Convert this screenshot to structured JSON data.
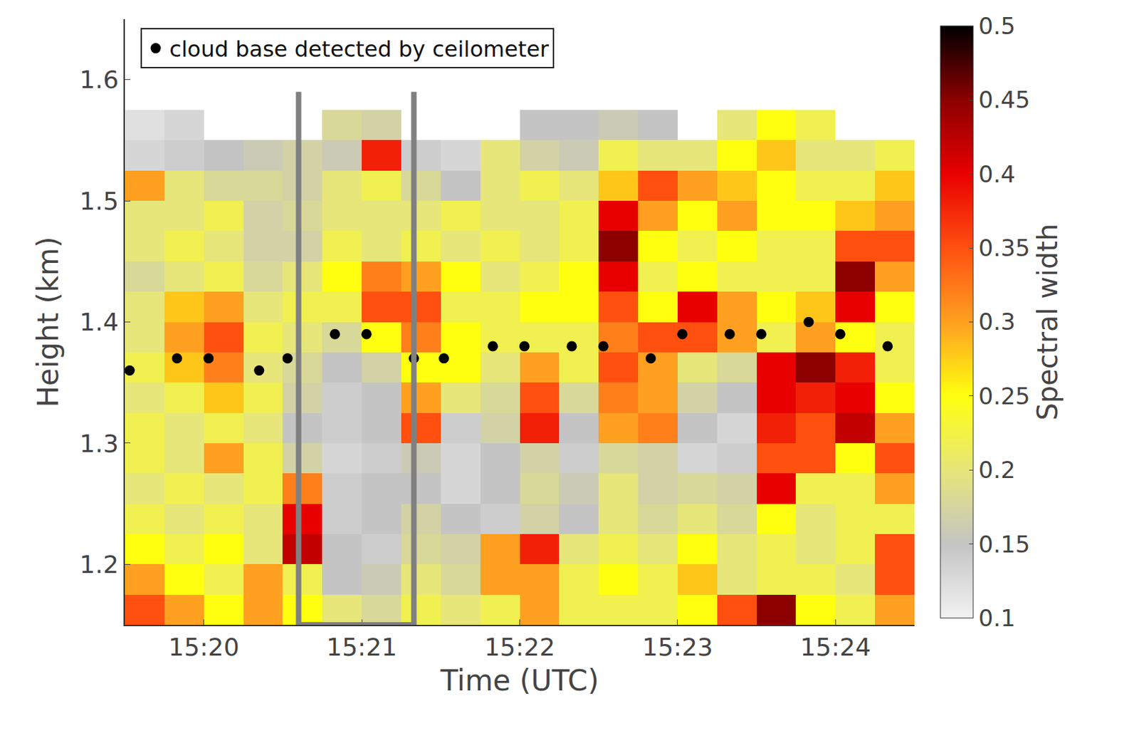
{
  "chart_data": {
    "type": "heatmap",
    "x_label": "Time (UTC)",
    "y_label": "Height (km)",
    "xlim": [
      919.5,
      924.5
    ],
    "xticks": [
      {
        "value": 920,
        "label": "15:20"
      },
      {
        "value": 921,
        "label": "15:21"
      },
      {
        "value": 922,
        "label": "15:22"
      },
      {
        "value": 923,
        "label": "15:23"
      },
      {
        "value": 924,
        "label": "15:24"
      }
    ],
    "ylim": [
      1.15,
      1.65
    ],
    "yticks": [
      1.2,
      1.3,
      1.4,
      1.5,
      1.6
    ],
    "x": [
      919.625,
      919.875,
      920.125,
      920.375,
      920.625,
      920.875,
      921.125,
      921.375,
      921.625,
      921.875,
      922.125,
      922.375,
      922.625,
      922.875,
      923.125,
      923.375,
      923.625,
      923.875,
      924.125,
      924.375
    ],
    "y": [
      1.1625,
      1.1875,
      1.2125,
      1.2375,
      1.2625,
      1.2875,
      1.3125,
      1.3375,
      1.3625,
      1.3875,
      1.4125,
      1.4375,
      1.4625,
      1.4875,
      1.5125,
      1.5375,
      1.5625
    ],
    "cells": [
      [
        0.35,
        0.3,
        0.25,
        0.3,
        0.25,
        0.2,
        0.18,
        0.22,
        0.2,
        0.22,
        0.3,
        0.22,
        0.22,
        0.22,
        0.25,
        0.35,
        0.45,
        0.25,
        0.22,
        0.3
      ],
      [
        0.3,
        0.25,
        0.22,
        0.3,
        0.22,
        0.15,
        0.16,
        0.2,
        0.18,
        0.3,
        0.3,
        0.22,
        0.25,
        0.22,
        0.28,
        0.2,
        0.22,
        0.22,
        0.2,
        0.35
      ],
      [
        0.25,
        0.22,
        0.25,
        0.2,
        0.42,
        0.15,
        0.14,
        0.18,
        0.17,
        0.3,
        0.38,
        0.2,
        0.22,
        0.2,
        0.25,
        0.2,
        0.22,
        0.2,
        0.22,
        0.35
      ],
      [
        0.22,
        0.2,
        0.22,
        0.2,
        0.4,
        0.14,
        0.15,
        0.17,
        0.15,
        0.14,
        0.17,
        0.15,
        0.2,
        0.18,
        0.2,
        0.18,
        0.25,
        0.2,
        0.22,
        0.22
      ],
      [
        0.2,
        0.22,
        0.2,
        0.22,
        0.32,
        0.14,
        0.15,
        0.15,
        0.13,
        0.15,
        0.18,
        0.16,
        0.2,
        0.17,
        0.18,
        0.17,
        0.4,
        0.22,
        0.22,
        0.3
      ],
      [
        0.22,
        0.2,
        0.3,
        0.22,
        0.17,
        0.13,
        0.14,
        0.16,
        0.13,
        0.15,
        0.17,
        0.14,
        0.18,
        0.17,
        0.13,
        0.14,
        0.35,
        0.35,
        0.25,
        0.35
      ],
      [
        0.22,
        0.2,
        0.22,
        0.2,
        0.15,
        0.14,
        0.15,
        0.35,
        0.14,
        0.17,
        0.38,
        0.15,
        0.3,
        0.32,
        0.15,
        0.13,
        0.38,
        0.35,
        0.42,
        0.3
      ],
      [
        0.2,
        0.22,
        0.28,
        0.22,
        0.17,
        0.14,
        0.15,
        0.3,
        0.2,
        0.18,
        0.35,
        0.18,
        0.32,
        0.3,
        0.17,
        0.15,
        0.4,
        0.38,
        0.4,
        0.25
      ],
      [
        0.22,
        0.28,
        0.32,
        0.2,
        0.18,
        0.15,
        0.17,
        0.25,
        0.25,
        0.2,
        0.3,
        0.22,
        0.35,
        0.3,
        0.2,
        0.18,
        0.4,
        0.45,
        0.38,
        0.22
      ],
      [
        0.2,
        0.3,
        0.35,
        0.22,
        0.2,
        0.18,
        0.25,
        0.32,
        0.25,
        0.22,
        0.22,
        0.22,
        0.32,
        0.35,
        0.35,
        0.3,
        0.22,
        0.3,
        0.25,
        0.22
      ],
      [
        0.2,
        0.28,
        0.3,
        0.2,
        0.22,
        0.22,
        0.35,
        0.35,
        0.22,
        0.22,
        0.25,
        0.25,
        0.35,
        0.25,
        0.4,
        0.3,
        0.25,
        0.28,
        0.4,
        0.25
      ],
      [
        0.18,
        0.2,
        0.22,
        0.18,
        0.2,
        0.25,
        0.32,
        0.3,
        0.25,
        0.2,
        0.22,
        0.25,
        0.4,
        0.22,
        0.25,
        0.22,
        0.22,
        0.22,
        0.45,
        0.3
      ],
      [
        0.2,
        0.22,
        0.2,
        0.17,
        0.17,
        0.22,
        0.2,
        0.22,
        0.2,
        0.22,
        0.2,
        0.22,
        0.45,
        0.25,
        0.22,
        0.25,
        0.22,
        0.22,
        0.35,
        0.35
      ],
      [
        0.2,
        0.2,
        0.22,
        0.17,
        0.18,
        0.2,
        0.2,
        0.2,
        0.22,
        0.2,
        0.2,
        0.22,
        0.4,
        0.3,
        0.25,
        0.3,
        0.25,
        0.25,
        0.28,
        0.3
      ],
      [
        0.3,
        0.2,
        0.18,
        0.18,
        0.17,
        0.2,
        0.22,
        0.18,
        0.15,
        0.2,
        0.22,
        0.2,
        0.28,
        0.35,
        0.3,
        0.28,
        0.25,
        0.22,
        0.22,
        0.28
      ],
      [
        0.13,
        0.14,
        0.15,
        0.16,
        0.17,
        0.16,
        0.38,
        0.14,
        0.13,
        0.2,
        0.17,
        0.16,
        0.22,
        0.2,
        0.2,
        0.25,
        0.28,
        0.2,
        0.2,
        0.22
      ],
      [
        0.12,
        0.13,
        null,
        null,
        null,
        0.18,
        0.17,
        null,
        null,
        null,
        0.15,
        0.15,
        0.16,
        0.15,
        null,
        0.2,
        0.25,
        0.22,
        null,
        null
      ]
    ],
    "colorbar": {
      "title": "Spectral width",
      "range": [
        0.1,
        0.5
      ],
      "ticks": [
        0.1,
        0.15,
        0.2,
        0.25,
        0.3,
        0.35,
        0.4,
        0.45,
        0.5
      ]
    },
    "series": [
      {
        "name": "cloud base detected by ceilometer",
        "type": "scatter",
        "color": "#000000",
        "marker": "circle",
        "x": [
          919.53,
          919.83,
          920.03,
          920.35,
          920.53,
          920.83,
          921.03,
          921.33,
          921.52,
          921.83,
          922.03,
          922.33,
          922.53,
          922.83,
          923.03,
          923.33,
          923.53,
          923.83,
          924.03,
          924.33
        ],
        "values": [
          1.36,
          1.37,
          1.37,
          1.36,
          1.37,
          1.39,
          1.39,
          1.37,
          1.37,
          1.38,
          1.38,
          1.38,
          1.38,
          1.37,
          1.39,
          1.39,
          1.39,
          1.4,
          1.39,
          1.38
        ]
      }
    ],
    "legend": "upper left",
    "highlight_box": {
      "xlim": [
        920.6,
        921.33
      ],
      "ylim": [
        1.15,
        1.59
      ],
      "color": "#808080"
    }
  }
}
